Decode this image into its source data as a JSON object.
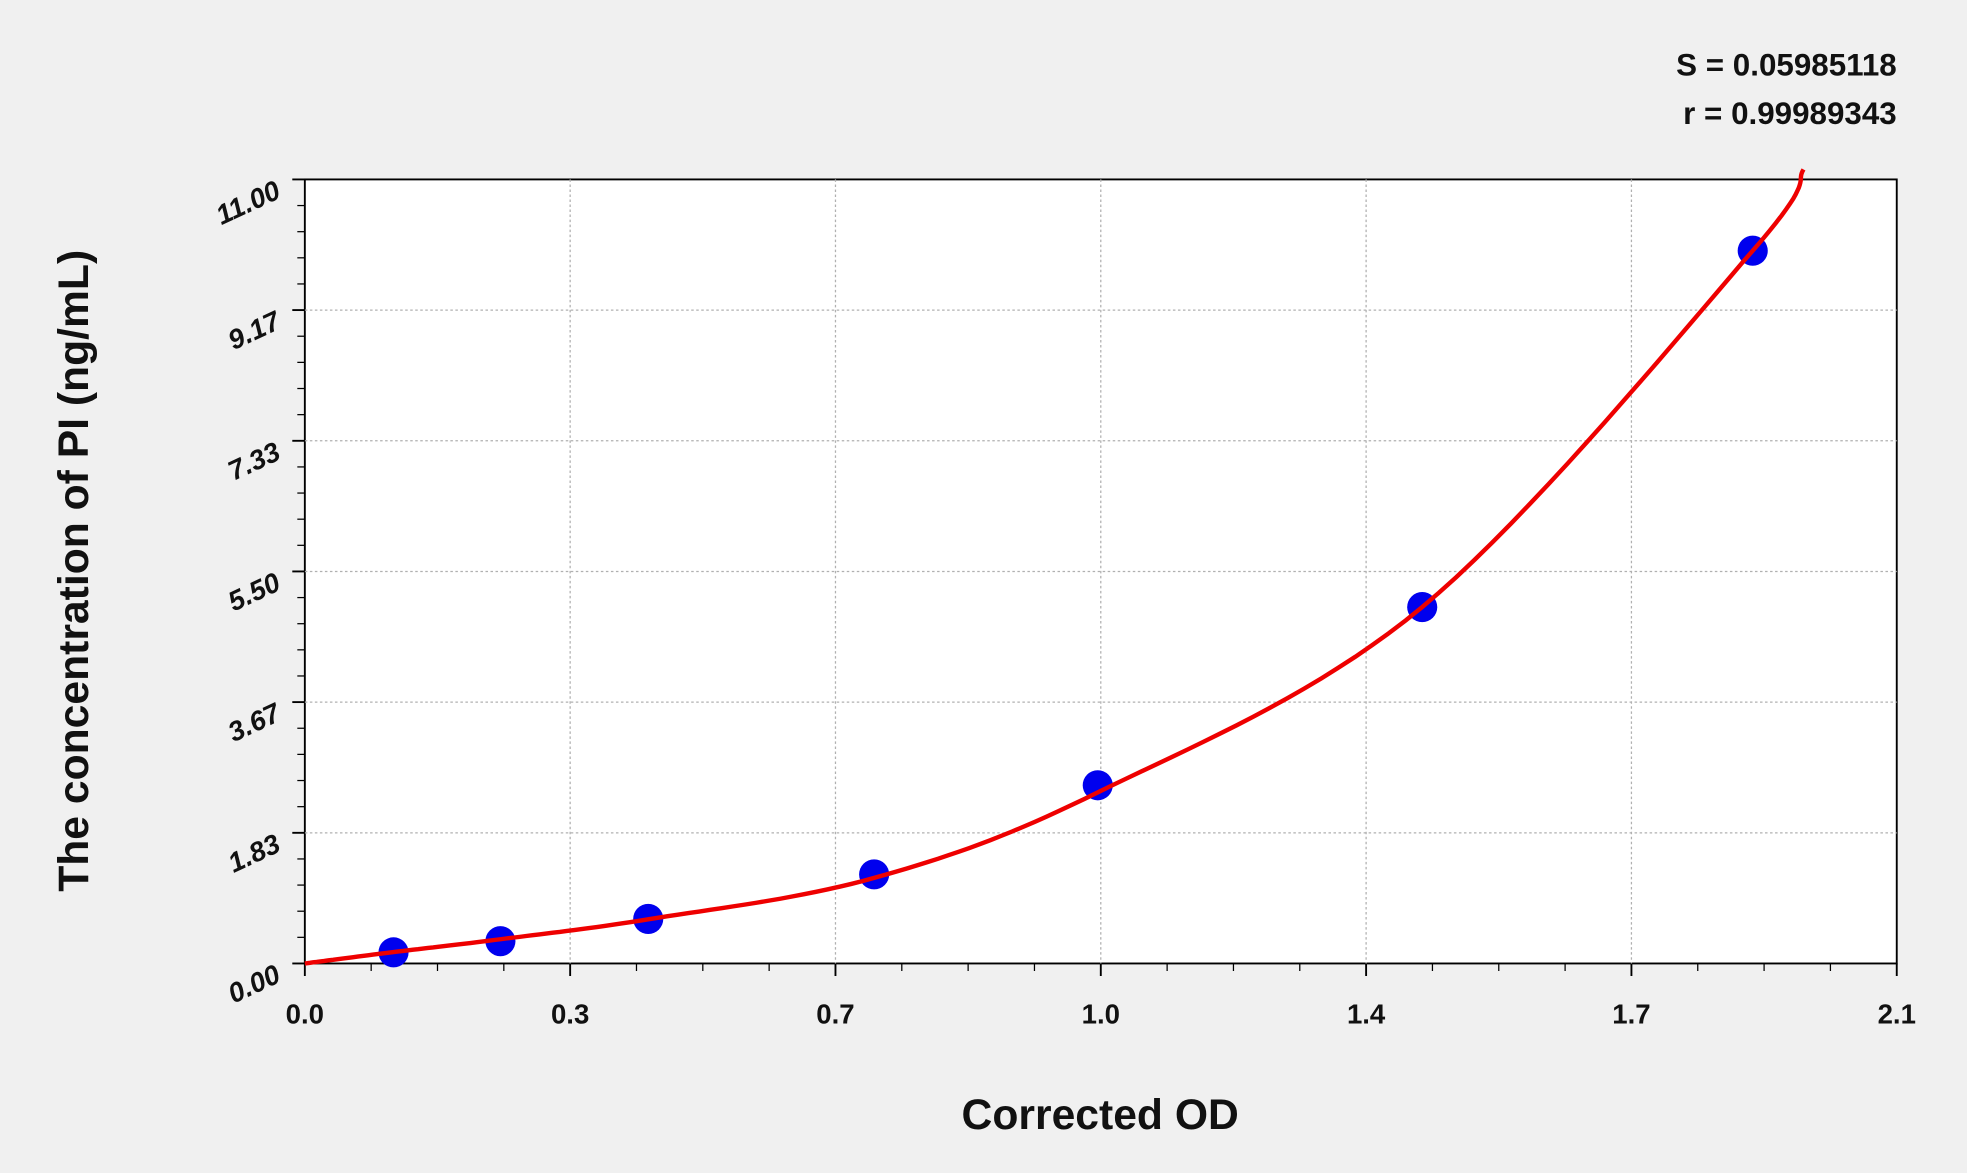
{
  "chart_data": {
    "type": "scatter",
    "xlabel": "Corrected OD",
    "ylabel": "The concentration of PI (ng/mL)",
    "xlim": [
      0,
      2.1
    ],
    "ylim": [
      0,
      11
    ],
    "grid": true,
    "x_ticks": [
      0,
      0.35,
      0.7,
      1.05,
      1.4,
      1.75,
      2.1
    ],
    "x_tick_labels": [
      "0.0",
      "0.3",
      "0.7",
      "1.0",
      "1.4",
      "1.7",
      "2.1"
    ],
    "y_ticks": [
      0,
      1.833,
      3.667,
      5.5,
      7.333,
      9.167,
      11
    ],
    "y_tick_labels": [
      "0.00",
      "1.83",
      "3.67",
      "5.50",
      "7.33",
      "9.17",
      "11.00"
    ],
    "annotations": [
      "S = 0.05985118",
      "r = 0.99989343"
    ],
    "points": {
      "x": [
        0.117,
        0.258,
        0.453,
        0.751,
        1.046,
        1.474,
        1.91
      ],
      "y": [
        0.156,
        0.313,
        0.625,
        1.25,
        2.5,
        5.0,
        10.0
      ],
      "color": "#0000ee"
    },
    "fit_curve": {
      "x": [
        0,
        0.117,
        0.258,
        0.453,
        0.751,
        1.046,
        1.474,
        1.91,
        1.977
      ],
      "y": [
        0,
        0.16,
        0.34,
        0.62,
        1.2,
        2.4,
        5.0,
        10.0,
        11.14
      ],
      "color": "#ee0000"
    }
  }
}
